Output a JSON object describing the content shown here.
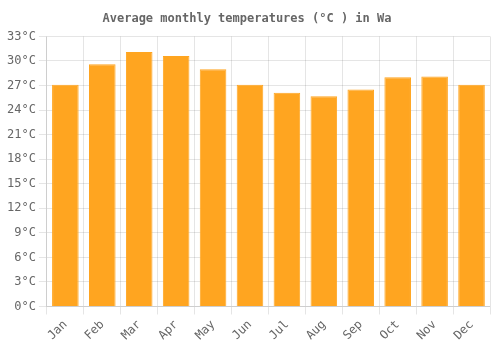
{
  "chart_data": {
    "type": "bar",
    "title": "Average monthly temperatures (°C ) in Wa",
    "categories": [
      "Jan",
      "Feb",
      "Mar",
      "Apr",
      "May",
      "Jun",
      "Jul",
      "Aug",
      "Sep",
      "Oct",
      "Nov",
      "Dec"
    ],
    "values": [
      27.1,
      29.6,
      31.1,
      30.6,
      29.0,
      27.1,
      26.1,
      25.7,
      26.5,
      28.0,
      28.1,
      27.1
    ],
    "color": "#FFA520",
    "ylim": [
      0,
      33
    ],
    "yticks": [
      {
        "value": 0,
        "label": "0°C"
      },
      {
        "value": 3,
        "label": "3°C"
      },
      {
        "value": 6,
        "label": "6°C"
      },
      {
        "value": 9,
        "label": "9°C"
      },
      {
        "value": 12,
        "label": "12°C"
      },
      {
        "value": 15,
        "label": "15°C"
      },
      {
        "value": 18,
        "label": "18°C"
      },
      {
        "value": 21,
        "label": "21°C"
      },
      {
        "value": 24,
        "label": "24°C"
      },
      {
        "value": 27,
        "label": "27°C"
      },
      {
        "value": 30,
        "label": "30°C"
      },
      {
        "value": 33,
        "label": "33°C"
      }
    ],
    "grid": true
  }
}
